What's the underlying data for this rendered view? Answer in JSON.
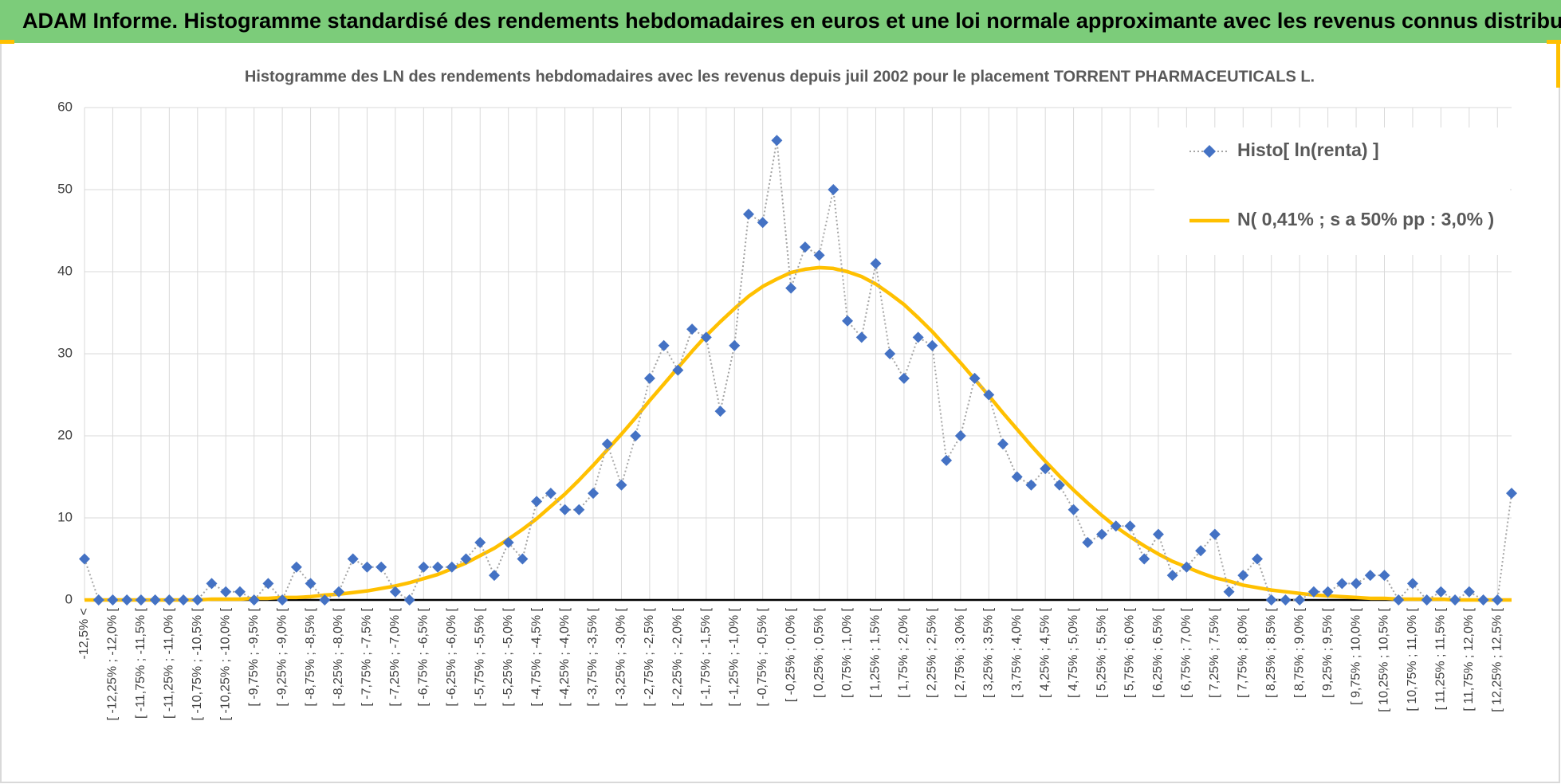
{
  "page_title": "ADAM Informe. Histogramme standardisé des rendements hebdomadaires en euros et une loi normale approximante avec les revenus connus distribués",
  "chart_data": {
    "type": "line",
    "title": "Histogramme des LN des rendements hebdomadaires avec les revenus depuis juil 2002 pour le placement TORRENT PHARMACEUTICALS L.",
    "categories": [
      "-12,5% <",
      null,
      "[ -12,25% ; -12,0% [",
      null,
      "[ -11,75% ; -11,5% [",
      null,
      "[ -11,25% ; -11,0% [",
      null,
      "[ -10,75% ; -10,5% [",
      null,
      "[ -10,25% ; -10,0% [",
      null,
      "[ -9,75% ; -9,5% [",
      null,
      "[ -9,25% ; -9,0% [",
      null,
      "[ -8,75% ; -8,5% [",
      null,
      "[ -8,25% ; -8,0% [",
      null,
      "[ -7,75% ; -7,5% [",
      null,
      "[ -7,25% ; -7,0% [",
      null,
      "[ -6,75% ; -6,5% [",
      null,
      "[ -6,25% ; -6,0% [",
      null,
      "[ -5,75% ; -5,5% [",
      null,
      "[ -5,25% ; -5,0% [",
      null,
      "[ -4,75% ; -4,5% [",
      null,
      "[ -4,25% ; -4,0% [",
      null,
      "[ -3,75% ; -3,5% [",
      null,
      "[ -3,25% ; -3,0% [",
      null,
      "[ -2,75% ; -2,5% [",
      null,
      "[ -2,25% ; -2,0% [",
      null,
      "[ -1,75% ; -1,5% [",
      null,
      "[ -1,25% ; -1,0% [",
      null,
      "[ -0,75% ; -0,5% [",
      null,
      "[ -0,25% ; 0,0% [",
      null,
      "[ 0,25% ; 0,5% [",
      null,
      "[ 0,75% ; 1,0% [",
      null,
      "[ 1,25% ; 1,5% [",
      null,
      "[ 1,75% ; 2,0% [",
      null,
      "[ 2,25% ; 2,5% [",
      null,
      "[ 2,75% ; 3,0% [",
      null,
      "[ 3,25% ; 3,5% [",
      null,
      "[ 3,75% ; 4,0% [",
      null,
      "[ 4,25% ; 4,5% [",
      null,
      "[ 4,75% ; 5,0% [",
      null,
      "[ 5,25% ; 5,5% [",
      null,
      "[ 5,75% ; 6,0% [",
      null,
      "[ 6,25% ; 6,5% [",
      null,
      "[ 6,75% ; 7,0% [",
      null,
      "[ 7,25% ; 7,5% [",
      null,
      "[ 7,75% ; 8,0% [",
      null,
      "[ 8,25% ; 8,5% [",
      null,
      "[ 8,75% ; 9,0% [",
      null,
      "[ 9,25% ; 9,5% [",
      null,
      "[ 9,75% ; 10,0% [",
      null,
      "[ 10,25% ; 10,5% [",
      null,
      "[ 10,75% ; 11,0% [",
      null,
      "[ 11,25% ; 11,5% [",
      null,
      "[ 11,75% ; 12,0% [",
      null,
      "[ 12,25% ; 12,5% [",
      null
    ],
    "series": [
      {
        "name": "Histo[ ln(renta) ]",
        "color": "#4472c4",
        "line_color": "#a5a5a5",
        "values": [
          5,
          0,
          0,
          0,
          0,
          0,
          0,
          0,
          0,
          2,
          1,
          1,
          0,
          2,
          0,
          4,
          2,
          0,
          1,
          5,
          4,
          4,
          1,
          0,
          4,
          4,
          4,
          5,
          7,
          3,
          7,
          5,
          12,
          13,
          11,
          11,
          13,
          19,
          14,
          20,
          27,
          31,
          28,
          33,
          32,
          23,
          31,
          47,
          46,
          56,
          38,
          43,
          42,
          50,
          34,
          32,
          41,
          30,
          27,
          32,
          31,
          17,
          20,
          27,
          25,
          19,
          15,
          14,
          16,
          14,
          11,
          7,
          8,
          9,
          9,
          5,
          8,
          3,
          4,
          6,
          8,
          1,
          3,
          5,
          0,
          0,
          0,
          1,
          1,
          2,
          2,
          3,
          3,
          0,
          2,
          0,
          1,
          0,
          1,
          0,
          0,
          13
        ]
      },
      {
        "name": "N( 0,41% ; s a 50% pp : 3,0% )",
        "color": "#ffc000",
        "values": [
          0,
          0,
          0,
          0,
          0,
          0,
          0,
          0,
          0,
          0.1,
          0.1,
          0.1,
          0.2,
          0.2,
          0.3,
          0.3,
          0.4,
          0.6,
          0.7,
          0.9,
          1.1,
          1.4,
          1.7,
          2.1,
          2.6,
          3.1,
          3.8,
          4.5,
          5.4,
          6.3,
          7.4,
          8.6,
          9.9,
          11.4,
          12.9,
          14.6,
          16.4,
          18.3,
          20.2,
          22.2,
          24.3,
          26.3,
          28.3,
          30.3,
          32.2,
          33.9,
          35.5,
          37.0,
          38.2,
          39.1,
          39.9,
          40.3,
          40.5,
          40.4,
          40.0,
          39.4,
          38.5,
          37.3,
          36.0,
          34.4,
          32.7,
          30.8,
          28.9,
          26.9,
          24.9,
          22.8,
          20.8,
          18.8,
          16.9,
          15.1,
          13.4,
          11.8,
          10.3,
          8.9,
          7.7,
          6.6,
          5.6,
          4.7,
          4.0,
          3.3,
          2.7,
          2.3,
          1.8,
          1.5,
          1.2,
          1.0,
          0.8,
          0.6,
          0.5,
          0.4,
          0.3,
          0.2,
          0.2,
          0.1,
          0.1,
          0.1,
          0.1,
          0,
          0,
          0,
          0,
          0
        ]
      }
    ],
    "ylim": [
      0,
      60
    ],
    "yticks": [
      0,
      10,
      20,
      30,
      40,
      50,
      60
    ],
    "grid": true,
    "legend": "upper right"
  }
}
